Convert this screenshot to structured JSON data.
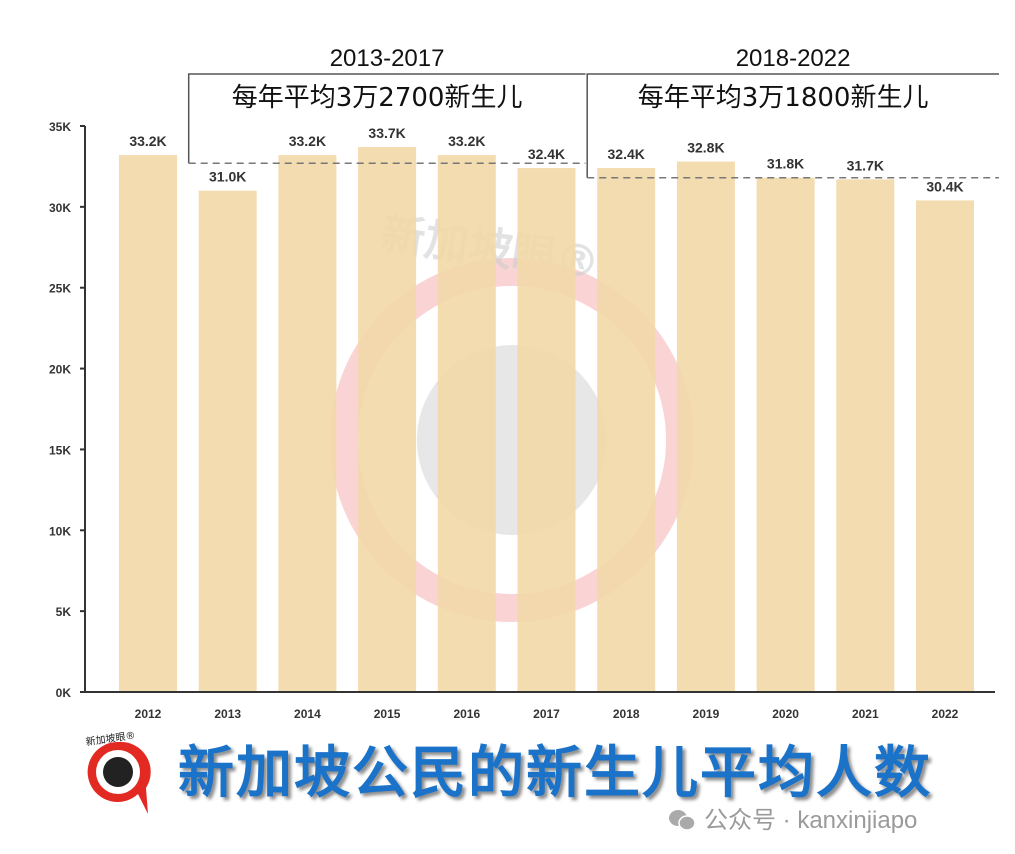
{
  "chart_data": {
    "type": "bar",
    "title": "新加坡公民的新生儿平均人数",
    "categories": [
      "2012",
      "2013",
      "2014",
      "2015",
      "2016",
      "2017",
      "2018",
      "2019",
      "2020",
      "2021",
      "2022"
    ],
    "values": [
      33.2,
      31.0,
      33.2,
      33.7,
      33.2,
      32.4,
      32.4,
      32.8,
      31.8,
      31.7,
      30.4
    ],
    "data_labels": [
      "33.2K",
      "31.0K",
      "33.2K",
      "33.7K",
      "33.2K",
      "32.4K",
      "32.4K",
      "32.8K",
      "31.8K",
      "31.7K",
      "30.4K"
    ],
    "unit": "K",
    "ylim": [
      0,
      35
    ],
    "yticks": [
      0,
      5,
      10,
      15,
      20,
      25,
      30,
      35
    ],
    "ytick_labels": [
      "0K",
      "5K",
      "10K",
      "15K",
      "20K",
      "25K",
      "30K",
      "35K"
    ],
    "bar_color": "#f3d8a8",
    "grid": false,
    "annotations": [
      {
        "period": "2013-2017",
        "text": "每年平均3万2700新生儿",
        "average": 32.7,
        "from": "2013",
        "to": "2017"
      },
      {
        "period": "2018-2022",
        "text": "每年平均3万1800新生儿",
        "average": 31.8,
        "from": "2018",
        "to": "2022"
      }
    ]
  },
  "watermark": {
    "text": "新加坡眼®",
    "color": "#f4a0a0"
  },
  "logo": {
    "text": "新加坡眼®"
  },
  "title_color": "#1b73c9",
  "source": "公众号 · kanxinjiapo"
}
